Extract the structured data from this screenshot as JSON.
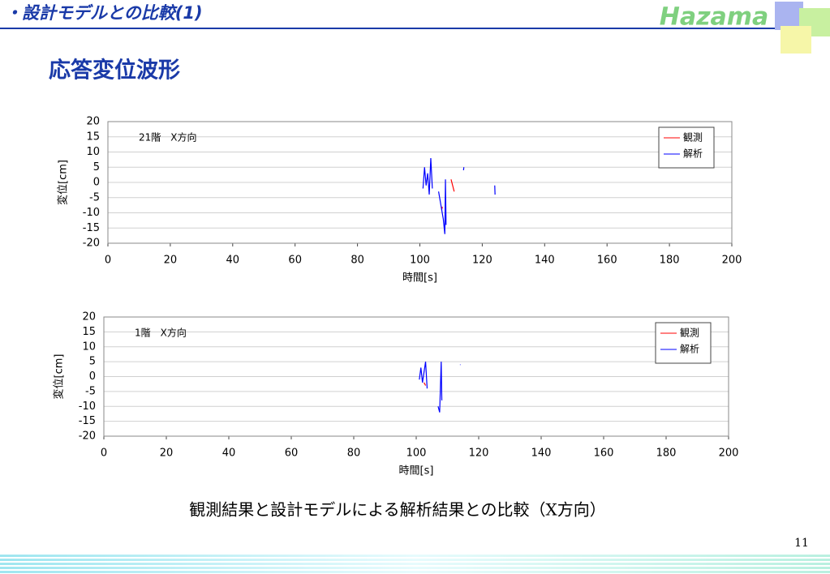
{
  "header": {
    "title": "・設計モデルとの比較(1)",
    "logo": "Hazama"
  },
  "slide_title": "応答変位波形",
  "chart_data": [
    {
      "type": "line",
      "annotation": "21階　X方向",
      "xlabel": "時間[s]",
      "ylabel": "変位[cm]",
      "xlim": [
        0,
        200
      ],
      "xticks": [
        0,
        20,
        40,
        60,
        80,
        100,
        120,
        140,
        160,
        180,
        200
      ],
      "ylim": [
        -20,
        20
      ],
      "yticks": [
        -20,
        -15,
        -10,
        -5,
        0,
        5,
        10,
        15,
        20
      ],
      "grid": true,
      "legend": "upper right",
      "series": [
        {
          "name": "観測",
          "color": "#ff0000",
          "x": [
            107,
            107.2,
            108,
            110,
            111
          ],
          "values": [
            -9,
            -8,
            null,
            1,
            -3
          ]
        },
        {
          "name": "解析",
          "color": "#0000ff",
          "x": [
            101,
            101.5,
            102,
            102.5,
            103,
            103.5,
            104,
            105,
            106,
            107,
            107.5,
            108,
            108.2,
            108.4,
            110,
            114,
            114.1,
            120,
            124,
            124.1
          ],
          "values": [
            -2,
            5,
            -1,
            3,
            -4,
            8,
            -2,
            null,
            -3,
            -9,
            -12,
            -17,
            1,
            -14,
            null,
            4,
            5,
            null,
            -1,
            -4
          ]
        }
      ]
    },
    {
      "type": "line",
      "annotation": "1階　X方向",
      "xlabel": "時間[s]",
      "ylabel": "変位[cm]",
      "xlim": [
        0,
        200
      ],
      "xticks": [
        0,
        20,
        40,
        60,
        80,
        100,
        120,
        140,
        160,
        180,
        200
      ],
      "ylim": [
        -20,
        20
      ],
      "yticks": [
        -20,
        -15,
        -10,
        -5,
        0,
        5,
        10,
        15,
        20
      ],
      "grid": true,
      "legend": "upper right",
      "series": [
        {
          "name": "観測",
          "color": "#ff0000",
          "x": [
            102.5,
            103
          ],
          "values": [
            -2,
            -3
          ]
        },
        {
          "name": "解析",
          "color": "#0000ff",
          "x": [
            101,
            101.5,
            102,
            103,
            103.5,
            105,
            107,
            107.5,
            108,
            108.2,
            110,
            114
          ],
          "values": [
            -1,
            3,
            -2,
            5,
            -4,
            null,
            -10,
            -12,
            5,
            -8,
            null,
            4
          ]
        }
      ]
    }
  ],
  "caption": "観測結果と設計モデルによる解析結果との比較（X方向）",
  "page_number": "11"
}
